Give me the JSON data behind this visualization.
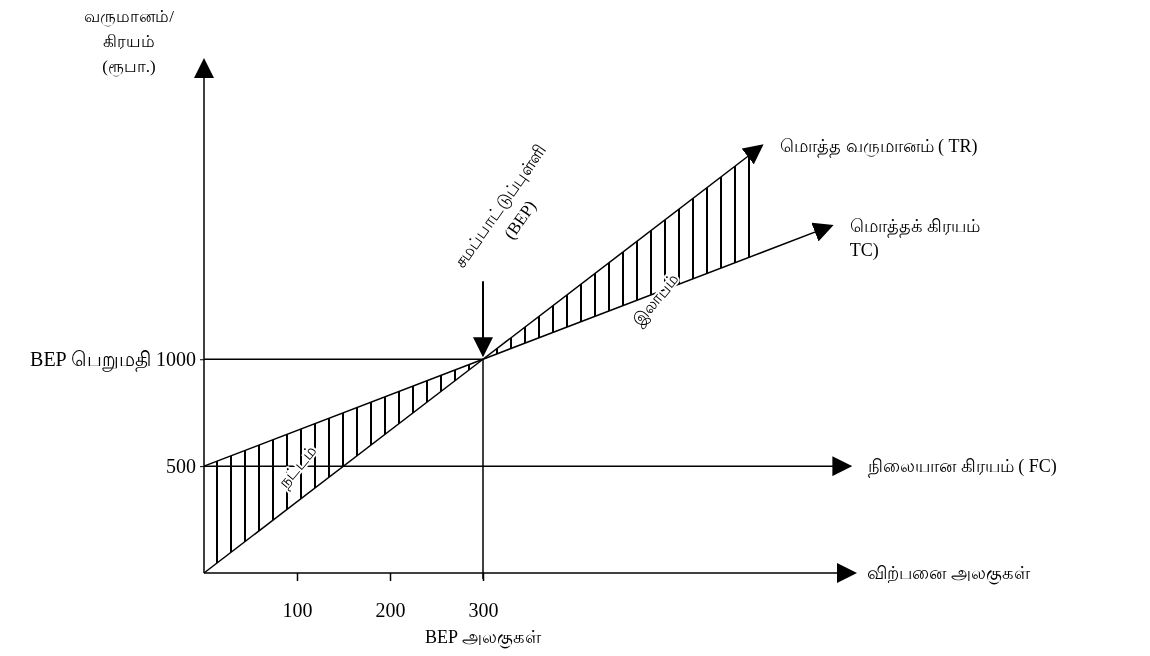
{
  "chart_data": {
    "type": "line",
    "ylabel": "வருமானம்/\nகிரயம்\n(ரூபா.)",
    "xlabel": "விற்பனை அலகுகள்",
    "xlim": [
      0,
      700
    ],
    "xticks": [
      100,
      200,
      300
    ],
    "ylim": [
      0,
      2400
    ],
    "yticks": [
      500,
      {
        "value": 1000,
        "label": "BEP பெறுமதி 1000"
      }
    ],
    "grid": false,
    "legend": false,
    "marker": "none",
    "line_style": "solid",
    "series": [
      {
        "name": "மொத்த வருமானம் ( TR)",
        "color": "#000000",
        "x": [
          0,
          300,
          600
        ],
        "values": [
          0,
          1000,
          2000
        ],
        "lower": [
          0,
          1000,
          1500
        ],
        "upper": [
          500,
          1000,
          2000
        ]
      },
      {
        "name": "மொத்தக்  கிரயம்\nTC)",
        "color": "#000000",
        "x": [
          0,
          300,
          675
        ],
        "values": [
          500,
          1000,
          1625
        ]
      },
      {
        "name": "நிலையான கிரயம்  ( FC)",
        "color": "#000000",
        "x": [
          0,
          695
        ],
        "values": [
          500,
          500
        ]
      }
    ],
    "ref_lines": [
      {
        "axis": "x",
        "value": 300,
        "color": "#000000"
      },
      {
        "axis": "y",
        "value": 1000,
        "color": "#000000"
      }
    ],
    "annotations": [
      {
        "text": "சமப்பாட்டுப்புள்ளி\n(BEP)",
        "x": 300,
        "y": 1000
      },
      "நட்டம்",
      {
        "text": "இலாபம்",
        "x": 485,
        "y": 1280
      },
      "BEP அலகுகள்"
    ]
  }
}
